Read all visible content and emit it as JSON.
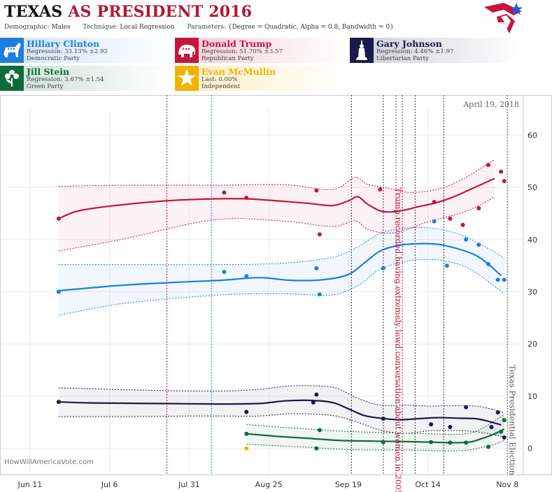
{
  "header": {
    "title_part1": "TEXAS",
    "title_part2": "AS PRESIDENT 2016",
    "demographic_label": "Demographic:",
    "demographic_value": "Males",
    "technique_label": "Technique:",
    "technique_value": "Local Regression",
    "parameters_label": "Parameters:",
    "parameters_value": "{Degree = Quadratic, Alpha = 0.8, Bandwidth = 0}"
  },
  "candidates": [
    {
      "name": "Hillary Clinton",
      "stat": "Regression: 33.13% ±2.92",
      "party": "Democratic Party",
      "color": "#1c7ee0",
      "icon": "donkey-icon"
    },
    {
      "name": "Donald Trump",
      "stat": "Regression: 51.70% ±3.57",
      "party": "Republican Party",
      "color": "#c8143c",
      "icon": "elephant-icon"
    },
    {
      "name": "Gary Johnson",
      "stat": "Regression: 4.46% ±1.97",
      "party": "Libertarian Party",
      "color": "#1a1a4e",
      "icon": "liberty-icon"
    },
    {
      "name": "Jill Stein",
      "stat": "Regression: 3.67% ±1.54",
      "party": "Green Party",
      "color": "#0f6b3a",
      "icon": "flower-icon"
    },
    {
      "name": "Evan McMullin",
      "stat": "Last: 0.00%",
      "party": "Independent",
      "color": "#f0b400",
      "icon": "star-icon"
    }
  ],
  "chart_data": {
    "type": "line",
    "date_label": "April 19, 2018",
    "watermark": "HowWillAmericaVote.com",
    "x_ticks": [
      "Jun 11",
      "Jul 6",
      "Jul 31",
      "Aug 25",
      "Sep 19",
      "Oct 14",
      "Nov 8"
    ],
    "y_ticks": [
      "0",
      "10",
      "20",
      "30",
      "40",
      "50",
      "60"
    ],
    "ylim": [
      -5,
      65
    ],
    "x_axis": "days after Jun 11, 2016",
    "xlim": [
      -9,
      155
    ],
    "grid": true,
    "annotations": [
      {
        "text": "Trump recorded having extremely lewd conversation about women in 2005",
        "x": 116,
        "color": "#b01838"
      },
      {
        "text": "Texas Presidential Election",
        "x": 150,
        "color": "#555555"
      }
    ],
    "event_lines": [
      {
        "x": 43,
        "color": "#b01838"
      },
      {
        "x": 57,
        "color": "#1c7ee0"
      },
      {
        "x": 101,
        "color": "#333333"
      },
      {
        "x": 111,
        "color": "#333333"
      },
      {
        "x": 115,
        "color": "#b01838"
      },
      {
        "x": 117,
        "color": "#b01838"
      },
      {
        "x": 121,
        "color": "#333333"
      },
      {
        "x": 130,
        "color": "#333333"
      },
      {
        "x": 150,
        "color": "#555555"
      }
    ],
    "series": [
      {
        "name": "Donald Trump",
        "color": "#c8143c",
        "line": [
          [
            9,
            44
          ],
          [
            14,
            45.3
          ],
          [
            20,
            46
          ],
          [
            28,
            46.6
          ],
          [
            38,
            47.2
          ],
          [
            48,
            47.6
          ],
          [
            58,
            47.8
          ],
          [
            68,
            47.8
          ],
          [
            78,
            47.4
          ],
          [
            88,
            46.9
          ],
          [
            95,
            46.5
          ],
          [
            100,
            47.4
          ],
          [
            103,
            48.2
          ],
          [
            106,
            46.8
          ],
          [
            110,
            45.5
          ],
          [
            114,
            45.3
          ],
          [
            118,
            45.7
          ],
          [
            122,
            46.3
          ],
          [
            126,
            46.8
          ],
          [
            130,
            47.5
          ],
          [
            134,
            48.4
          ],
          [
            138,
            49.5
          ],
          [
            142,
            50.6
          ],
          [
            146,
            51.7
          ]
        ],
        "upper": [
          [
            9,
            50.2
          ],
          [
            30,
            50.4
          ],
          [
            58,
            50.4
          ],
          [
            80,
            50.5
          ],
          [
            95,
            49.6
          ],
          [
            102,
            51.9
          ],
          [
            106,
            50.6
          ],
          [
            112,
            49.9
          ],
          [
            118,
            49.1
          ],
          [
            124,
            49.2
          ],
          [
            130,
            50
          ],
          [
            136,
            51.6
          ],
          [
            142,
            53.8
          ],
          [
            146,
            55.3
          ]
        ],
        "lower": [
          [
            9,
            37.8
          ],
          [
            30,
            40.2
          ],
          [
            58,
            43.8
          ],
          [
            80,
            43.5
          ],
          [
            95,
            42.5
          ],
          [
            102,
            43.6
          ],
          [
            106,
            42
          ],
          [
            112,
            41.2
          ],
          [
            118,
            41.8
          ],
          [
            124,
            43.2
          ],
          [
            130,
            44.2
          ],
          [
            136,
            45.2
          ],
          [
            142,
            46.8
          ],
          [
            146,
            48.2
          ]
        ],
        "points": [
          [
            9,
            44
          ],
          [
            61,
            49
          ],
          [
            68,
            48
          ],
          [
            90,
            49.4
          ],
          [
            91,
            41
          ],
          [
            110,
            49.6
          ],
          [
            127,
            47.2
          ],
          [
            132,
            44
          ],
          [
            136,
            42.8
          ],
          [
            141,
            46
          ],
          [
            144,
            54.3
          ],
          [
            148,
            53
          ],
          [
            149,
            51.2
          ]
        ]
      },
      {
        "name": "Hillary Clinton",
        "color": "#1c7ee0",
        "line": [
          [
            9,
            30.2
          ],
          [
            20,
            30.8
          ],
          [
            30,
            31.3
          ],
          [
            45,
            31.8
          ],
          [
            60,
            32.2
          ],
          [
            72,
            32.7
          ],
          [
            82,
            32.2
          ],
          [
            92,
            32.3
          ],
          [
            100,
            33.3
          ],
          [
            105,
            35.5
          ],
          [
            110,
            37.8
          ],
          [
            116,
            38.9
          ],
          [
            122,
            39.2
          ],
          [
            128,
            39.1
          ],
          [
            134,
            38.3
          ],
          [
            140,
            37
          ],
          [
            144,
            35.3
          ],
          [
            148,
            33.1
          ]
        ],
        "upper": [
          [
            9,
            35.2
          ],
          [
            30,
            35.2
          ],
          [
            60,
            35.2
          ],
          [
            80,
            35.5
          ],
          [
            95,
            36.6
          ],
          [
            103,
            38.6
          ],
          [
            110,
            41.2
          ],
          [
            118,
            42.2
          ],
          [
            126,
            42.2
          ],
          [
            134,
            41.2
          ],
          [
            140,
            39.6
          ],
          [
            146,
            37.6
          ],
          [
            149,
            36.3
          ]
        ],
        "lower": [
          [
            9,
            25.5
          ],
          [
            30,
            27.8
          ],
          [
            60,
            29.4
          ],
          [
            80,
            29.6
          ],
          [
            95,
            29.4
          ],
          [
            103,
            31.2
          ],
          [
            110,
            34.3
          ],
          [
            118,
            35.8
          ],
          [
            126,
            36.2
          ],
          [
            134,
            35.4
          ],
          [
            140,
            33.7
          ],
          [
            146,
            31
          ],
          [
            149,
            29.6
          ]
        ],
        "points": [
          [
            9,
            30
          ],
          [
            61,
            33.8
          ],
          [
            68,
            33
          ],
          [
            90,
            34.5
          ],
          [
            91,
            29.5
          ],
          [
            111,
            34.5
          ],
          [
            127,
            43.5
          ],
          [
            131,
            35
          ],
          [
            137,
            40
          ],
          [
            141,
            39
          ],
          [
            144,
            35.3
          ],
          [
            147,
            32.3
          ],
          [
            149,
            32.3
          ]
        ]
      },
      {
        "name": "Gary Johnson",
        "color": "#1a1a4e",
        "line": [
          [
            9,
            8.9
          ],
          [
            20,
            8.7
          ],
          [
            40,
            8.6
          ],
          [
            60,
            8.5
          ],
          [
            72,
            8.6
          ],
          [
            80,
            9.1
          ],
          [
            88,
            9.2
          ],
          [
            95,
            8.8
          ],
          [
            100,
            7.6
          ],
          [
            105,
            6.3
          ],
          [
            110,
            5.8
          ],
          [
            116,
            5.5
          ],
          [
            122,
            5.7
          ],
          [
            128,
            5.9
          ],
          [
            134,
            5.8
          ],
          [
            140,
            5.7
          ],
          [
            144,
            5.2
          ],
          [
            148,
            4.5
          ]
        ],
        "upper": [
          [
            9,
            11.6
          ],
          [
            40,
            11.1
          ],
          [
            60,
            11
          ],
          [
            72,
            11.3
          ],
          [
            80,
            11.9
          ],
          [
            88,
            12
          ],
          [
            96,
            11.6
          ],
          [
            103,
            9.6
          ],
          [
            110,
            8.3
          ],
          [
            118,
            8.3
          ],
          [
            126,
            8.1
          ],
          [
            132,
            8.2
          ],
          [
            140,
            8.1
          ],
          [
            146,
            7.4
          ],
          [
            149,
            6.8
          ]
        ],
        "lower": [
          [
            9,
            6.1
          ],
          [
            30,
            6.1
          ],
          [
            50,
            6.2
          ],
          [
            60,
            6.2
          ],
          [
            72,
            6.2
          ],
          [
            80,
            6.6
          ],
          [
            88,
            6.6
          ],
          [
            96,
            6.2
          ],
          [
            103,
            5
          ],
          [
            110,
            3.5
          ],
          [
            118,
            2.9
          ],
          [
            126,
            3.4
          ],
          [
            134,
            3.4
          ],
          [
            140,
            3.2
          ],
          [
            146,
            2.6
          ],
          [
            149,
            2.1
          ]
        ],
        "points": [
          [
            9,
            8.9
          ],
          [
            68,
            7
          ],
          [
            89,
            8.8
          ],
          [
            90,
            10.3
          ],
          [
            111,
            5.7
          ],
          [
            126,
            4.6
          ],
          [
            132,
            4.1
          ],
          [
            137,
            7.9
          ],
          [
            145,
            4.1
          ],
          [
            147,
            6.9
          ],
          [
            149,
            2.1
          ]
        ]
      },
      {
        "name": "Jill Stein",
        "color": "#0f6b3a",
        "line": [
          [
            68,
            2.8
          ],
          [
            78,
            2.3
          ],
          [
            88,
            1.9
          ],
          [
            98,
            1.5
          ],
          [
            108,
            1.4
          ],
          [
            118,
            1.3
          ],
          [
            126,
            1.2
          ],
          [
            132,
            1.1
          ],
          [
            138,
            1.2
          ],
          [
            142,
            1.9
          ],
          [
            146,
            2.8
          ],
          [
            149,
            3.7
          ]
        ],
        "upper": [
          [
            68,
            4.6
          ],
          [
            78,
            4.1
          ],
          [
            88,
            3.7
          ],
          [
            98,
            3.3
          ],
          [
            108,
            3.1
          ],
          [
            118,
            2.9
          ],
          [
            126,
            2.8
          ],
          [
            132,
            2.7
          ],
          [
            138,
            2.9
          ],
          [
            142,
            3.8
          ],
          [
            146,
            5.3
          ],
          [
            149,
            6.5
          ]
        ],
        "lower": [
          [
            68,
            0.8
          ],
          [
            78,
            0.5
          ],
          [
            88,
            0.2
          ],
          [
            98,
            -0.2
          ],
          [
            108,
            -0.3
          ],
          [
            118,
            -0.3
          ],
          [
            126,
            -0.4
          ],
          [
            132,
            -0.5
          ],
          [
            138,
            -0.3
          ],
          [
            142,
            0.2
          ],
          [
            146,
            0.8
          ],
          [
            149,
            1.5
          ]
        ],
        "points": [
          [
            68,
            2.8
          ],
          [
            90,
            0
          ],
          [
            91,
            3.5
          ],
          [
            111,
            1.2
          ],
          [
            126,
            1.2
          ],
          [
            132,
            1.1
          ],
          [
            137,
            1.1
          ],
          [
            144,
            0.3
          ],
          [
            148,
            3.2
          ],
          [
            149,
            5.4
          ]
        ]
      },
      {
        "name": "Evan McMullin",
        "color": "#f0b400",
        "line": [],
        "upper": [],
        "lower": [],
        "points": [
          [
            68,
            0
          ]
        ]
      }
    ]
  }
}
